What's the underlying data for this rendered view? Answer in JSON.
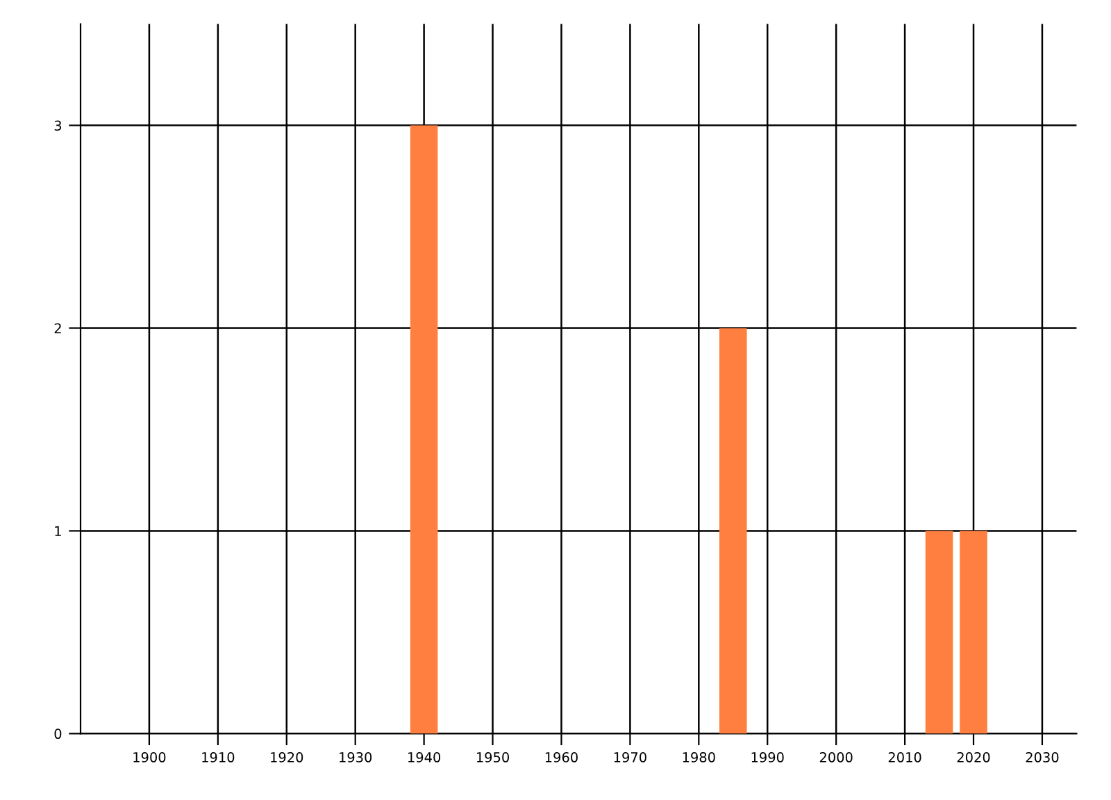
{
  "chart_data": {
    "type": "bar",
    "x": [
      1940,
      1985,
      2015,
      2020
    ],
    "values": [
      3,
      2,
      1,
      1
    ],
    "color": "#ff7f40",
    "xlim": [
      1890,
      2035
    ],
    "xticks": [
      1900,
      1910,
      1920,
      1930,
      1940,
      1950,
      1960,
      1970,
      1980,
      1990,
      2000,
      2010,
      2020,
      2030
    ],
    "ylim": [
      0,
      3.5
    ],
    "yticks": [
      0,
      1,
      2,
      3
    ],
    "grid": true
  }
}
